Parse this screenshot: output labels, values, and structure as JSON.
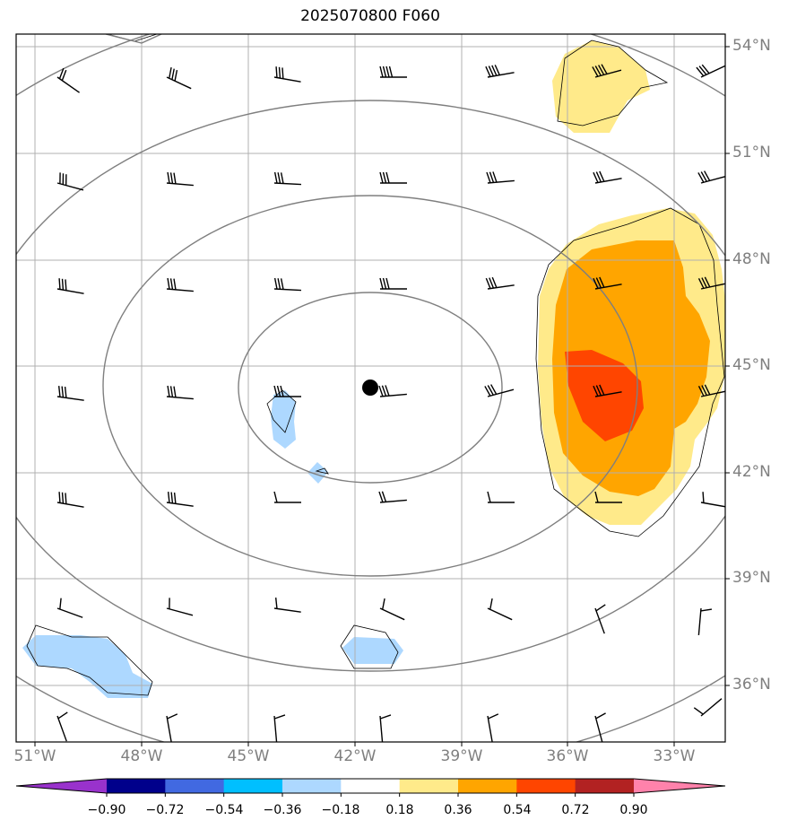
{
  "title": "2025070800 F060",
  "lat_labels": [
    "54°N",
    "51°N",
    "48°N",
    "45°N",
    "42°N",
    "39°N",
    "36°N"
  ],
  "lon_labels": [
    "51°W",
    "48°W",
    "45°W",
    "42°W",
    "39°W",
    "36°W",
    "33°W"
  ],
  "colorbar": {
    "ticks": [
      "−0.90",
      "−0.72",
      "−0.54",
      "−0.36",
      "−0.18",
      "0.18",
      "0.36",
      "0.54",
      "0.72",
      "0.90"
    ],
    "colors": [
      "#9932cc",
      "#00008b",
      "#4169e1",
      "#00bfff",
      "#add8ff",
      "#ffffff",
      "#ffea8a",
      "#ffa500",
      "#ff4500",
      "#b22222",
      "#ff82ab"
    ]
  },
  "field_colors": {
    "light_blue": "#add8ff",
    "yellow": "#ffea8a",
    "orange": "#ffa500",
    "red_orange": "#ff4500",
    "contour": "#7f7f7f",
    "grid": "#b0b0b0"
  },
  "center_marker": "low-center-dot-icon"
}
